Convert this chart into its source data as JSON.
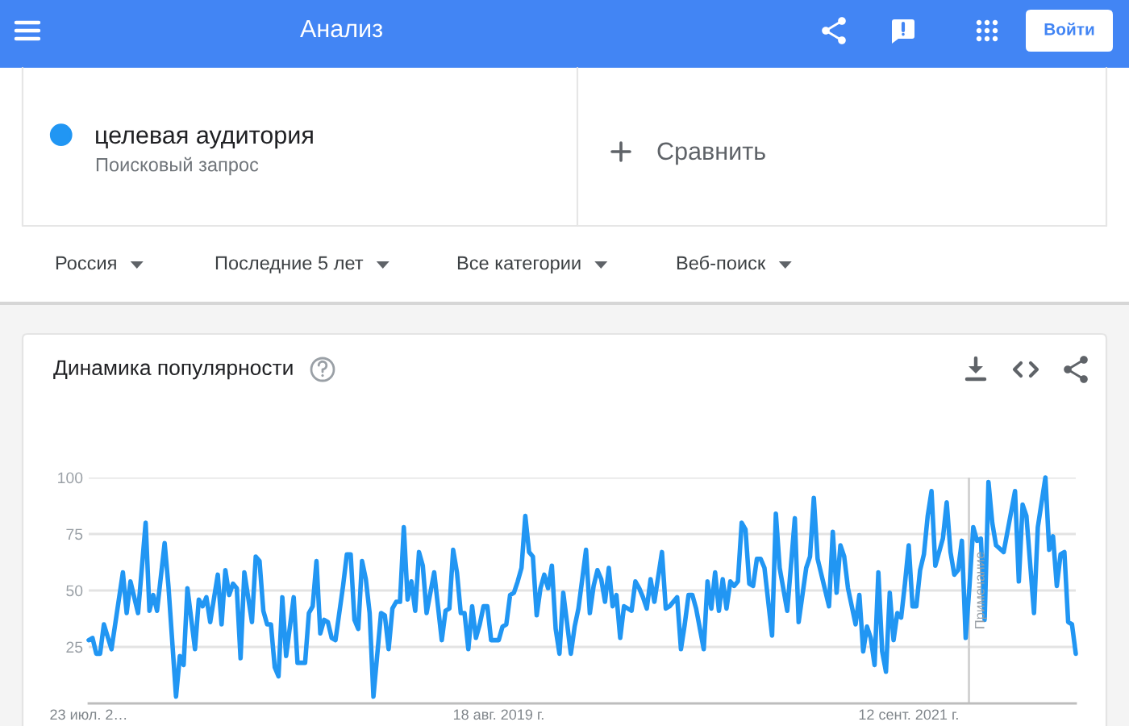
{
  "chart_data": {
    "type": "line",
    "title": "Динамика популярности",
    "annotations": [
      "Анализ",
      "Поисковый запрос",
      "Сравнить",
      "Россия",
      "Последние 5 лет",
      "Все категории",
      "Веб-поиск",
      "Войти"
    ],
    "x": [
      "2017-07-23",
      "2017-07-30",
      "2017-08-06",
      "2017-08-13",
      "2017-08-20",
      "2017-09-03",
      "2017-09-24",
      "2017-10-01",
      "2017-10-08",
      "2017-10-22",
      "2017-11-05",
      "2017-11-12",
      "2017-11-19",
      "2017-11-26",
      "2017-12-10",
      "2017-12-17",
      "2017-12-31",
      "2018-01-07",
      "2018-01-14",
      "2018-01-21",
      "2018-02-04",
      "2018-02-11",
      "2018-02-18",
      "2018-02-25",
      "2018-03-04",
      "2018-03-18",
      "2018-03-25",
      "2018-04-01",
      "2018-04-08",
      "2018-04-15",
      "2018-04-22",
      "2018-04-29",
      "2018-05-06",
      "2018-05-20",
      "2018-05-27",
      "2018-06-03",
      "2018-06-10",
      "2018-06-17",
      "2018-06-24",
      "2018-07-01",
      "2018-07-08",
      "2018-07-15",
      "2018-07-22",
      "2018-08-05",
      "2018-08-12",
      "2018-08-19",
      "2018-08-26",
      "2018-09-02",
      "2018-09-09",
      "2018-09-16",
      "2018-09-23",
      "2018-09-30",
      "2018-10-07",
      "2018-10-14",
      "2018-10-21",
      "2018-11-04",
      "2018-11-11",
      "2018-11-18",
      "2018-11-25",
      "2018-12-02",
      "2018-12-09",
      "2018-12-16",
      "2018-12-23",
      "2018-12-30",
      "2019-01-13",
      "2019-01-20",
      "2019-01-27",
      "2019-02-03",
      "2019-02-10",
      "2019-02-17",
      "2019-02-24",
      "2019-03-03",
      "2019-03-10",
      "2019-03-17",
      "2019-03-24",
      "2019-03-31",
      "2019-04-07",
      "2019-04-21",
      "2019-04-28",
      "2019-05-05",
      "2019-05-12",
      "2019-05-19",
      "2019-05-26",
      "2019-06-02",
      "2019-06-09",
      "2019-06-16",
      "2019-06-23",
      "2019-06-30",
      "2019-07-07",
      "2019-07-14",
      "2019-07-21",
      "2019-07-28",
      "2019-08-04",
      "2019-08-11",
      "2019-08-18",
      "2019-08-25",
      "2019-09-01",
      "2019-09-08",
      "2019-09-15",
      "2019-09-22",
      "2019-09-29",
      "2019-10-06",
      "2019-10-13",
      "2019-10-20",
      "2019-10-27",
      "2019-11-03",
      "2019-11-10",
      "2019-11-17",
      "2019-11-24",
      "2019-12-01",
      "2019-12-08",
      "2019-12-15",
      "2019-12-29",
      "2020-01-05",
      "2020-01-12",
      "2020-01-26",
      "2020-02-02",
      "2020-02-09",
      "2020-02-16",
      "2020-02-23",
      "2020-03-01",
      "2020-03-08",
      "2020-03-15",
      "2020-03-22",
      "2020-03-29",
      "2020-04-05",
      "2020-04-12",
      "2020-04-19",
      "2020-04-26",
      "2020-05-03",
      "2020-05-10",
      "2020-05-17",
      "2020-05-24",
      "2020-05-31",
      "2020-06-14",
      "2020-06-21",
      "2020-06-28",
      "2020-07-12",
      "2020-07-19",
      "2020-07-26",
      "2020-08-02",
      "2020-08-09",
      "2020-08-16",
      "2020-08-30",
      "2020-09-06",
      "2020-09-13",
      "2020-09-20",
      "2020-09-27",
      "2020-10-04",
      "2020-10-11",
      "2020-10-18",
      "2020-10-25",
      "2020-11-01",
      "2020-11-08",
      "2020-11-15",
      "2020-11-22",
      "2020-11-29",
      "2020-12-06",
      "2020-12-13",
      "2020-12-20",
      "2021-01-03",
      "2021-01-10",
      "2021-01-17",
      "2021-01-31",
      "2021-02-14",
      "2021-02-21",
      "2021-03-07",
      "2021-03-14",
      "2021-03-21",
      "2021-03-28",
      "2021-04-04",
      "2021-04-18",
      "2021-04-25",
      "2021-05-02",
      "2021-05-09",
      "2021-05-16",
      "2021-05-23",
      "2021-06-06",
      "2021-06-13",
      "2021-06-20",
      "2021-06-27",
      "2021-07-04",
      "2021-07-11",
      "2021-07-18",
      "2021-07-25",
      "2021-08-01",
      "2021-08-08",
      "2021-08-15",
      "2021-08-22",
      "2021-08-29",
      "2021-09-05",
      "2021-09-12",
      "2021-09-19",
      "2021-09-26",
      "2021-10-03",
      "2021-10-10",
      "2021-10-17",
      "2021-10-24",
      "2021-10-31",
      "2021-11-14",
      "2021-11-21",
      "2021-11-28",
      "2021-12-05",
      "2021-12-12",
      "2021-12-19",
      "2021-12-26",
      "2022-01-02",
      "2022-01-09",
      "2022-01-16",
      "2022-01-23",
      "2022-01-30",
      "2022-02-06",
      "2022-02-13",
      "2022-02-20",
      "2022-03-06",
      "2022-03-13",
      "2022-03-27",
      "2022-04-03",
      "2022-04-10",
      "2022-04-17",
      "2022-05-01",
      "2022-05-08",
      "2022-05-22",
      "2022-05-29",
      "2022-06-05",
      "2022-06-12",
      "2022-06-19",
      "2022-06-26",
      "2022-07-03",
      "2022-07-10",
      "2022-07-17"
    ],
    "series": [
      {
        "name": "целевая аудитория",
        "color": "#2196f3",
        "values": [
          28,
          29,
          22,
          22,
          35,
          24,
          58,
          40,
          54,
          40,
          80,
          41,
          48,
          41,
          71,
          52,
          3,
          21,
          17,
          51,
          24,
          46,
          43,
          47,
          36,
          57,
          35,
          59,
          48,
          53,
          51,
          20,
          58,
          36,
          65,
          63,
          41,
          35,
          35,
          16,
          12,
          47,
          21,
          47,
          18,
          18,
          18,
          40,
          43,
          63,
          31,
          37,
          36,
          29,
          28,
          52,
          66,
          66,
          37,
          33,
          63,
          55,
          40,
          3,
          40,
          39,
          24,
          42,
          45,
          45,
          78,
          46,
          54,
          41,
          67,
          61,
          40,
          58,
          43,
          28,
          41,
          42,
          68,
          58,
          40,
          40,
          24,
          43,
          29,
          35,
          43,
          43,
          28,
          28,
          28,
          34,
          35,
          48,
          49,
          54,
          60,
          83,
          67,
          65,
          39,
          51,
          57,
          51,
          61,
          33,
          22,
          49,
          22,
          34,
          42,
          68,
          40,
          52,
          59,
          55,
          45,
          60,
          43,
          48,
          29,
          43,
          42,
          41,
          54,
          51,
          47,
          42,
          55,
          45,
          67,
          42,
          43,
          47,
          24,
          35,
          48,
          48,
          42,
          24,
          54,
          42,
          58,
          41,
          55,
          42,
          54,
          52,
          54,
          80,
          77,
          53,
          52,
          64,
          64,
          60,
          30,
          84,
          60,
          41,
          82,
          36,
          60,
          65,
          91,
          64,
          57,
          43,
          76,
          49,
          70,
          65,
          51,
          35,
          48,
          23,
          34,
          29,
          17,
          58,
          23,
          14,
          49,
          28,
          40,
          38,
          53,
          70,
          43,
          43,
          59,
          66,
          83,
          94,
          61,
          73,
          89,
          67,
          57,
          59,
          72,
          29,
          52,
          78,
          72,
          73,
          37,
          98,
          80,
          70,
          67,
          76,
          94,
          54,
          88,
          83,
          40,
          78,
          100,
          68,
          74,
          52,
          66,
          67,
          36,
          35,
          22
        ]
      }
    ],
    "xlim": [
      "2017-07-23",
      "2022-07-17"
    ],
    "xticks": [
      {
        "value": "2017-07-23",
        "label": "23 июл. 2…"
      },
      {
        "value": "2019-08-18",
        "label": "18 авг. 2019 г."
      },
      {
        "value": "2021-09-12",
        "label": "12 сент. 2021 г."
      }
    ],
    "ylim": [
      0,
      100
    ],
    "yticks": [
      25,
      50,
      75,
      100
    ],
    "ref_lines": [
      {
        "axis": "x",
        "value": "2022-01-01",
        "label": "Примечание",
        "color": "#d0d0d0"
      }
    ],
    "grid": "y",
    "legend": "top left"
  }
}
